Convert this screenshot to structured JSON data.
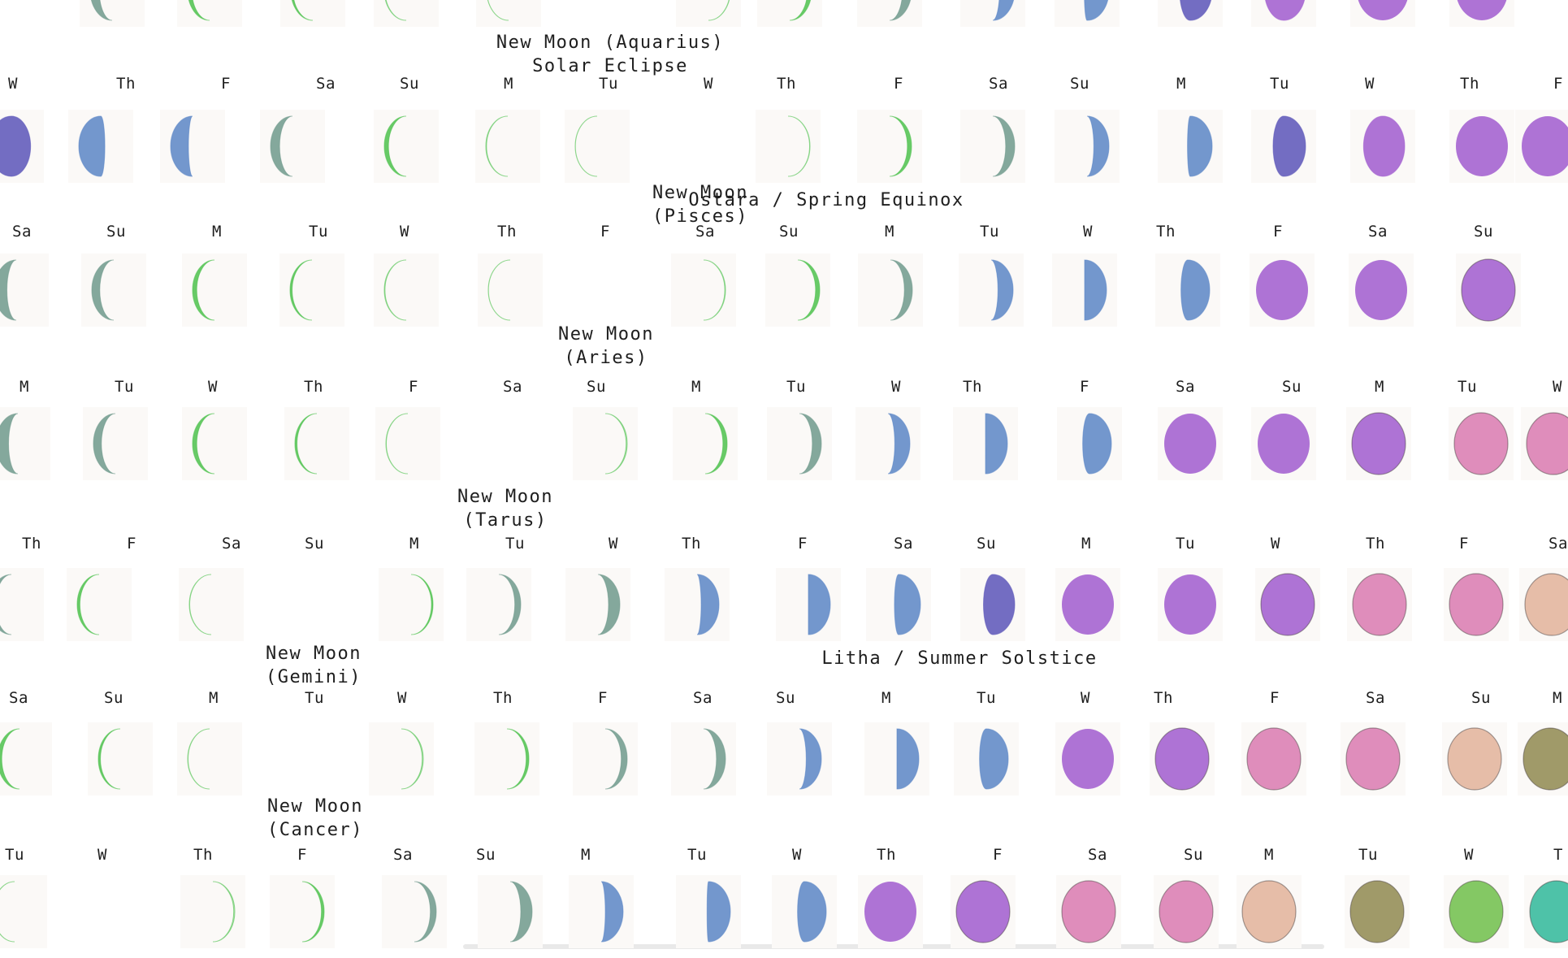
{
  "weeks": [
    {
      "days": [
        "W",
        "Th",
        "F",
        "Sa",
        "Su",
        "M",
        "Tu",
        "W",
        "Th",
        "F",
        "Sa",
        "Su",
        "M",
        "Tu",
        "W",
        "Th",
        "F"
      ],
      "phases": [
        0.58,
        0.72,
        0.78,
        0.85,
        0.9,
        0.96,
        0.98,
        null,
        0.03,
        0.1,
        0.15,
        0.2,
        0.27,
        0.33,
        0.42,
        0.48,
        0.55
      ],
      "annotations": [
        {
          "id": "new-moon-aquarius",
          "lines": [
            "New Moon (Aquarius)",
            "Solar Eclipse"
          ]
        },
        {
          "id": "new-moon-pisces",
          "lines": [
            "New Moon",
            "(Pisces)"
          ]
        },
        {
          "id": "ostara",
          "lines": [
            "Ostara / Spring Equinox"
          ]
        }
      ]
    },
    {
      "days": [
        "Sa",
        "Su",
        "M",
        "Tu",
        "W",
        "Th",
        "F",
        "Sa",
        "Su",
        "M",
        "Tu",
        "W",
        "Th",
        "F",
        "Sa",
        "Su"
      ],
      "phases": [
        0.82,
        0.86,
        0.9,
        0.93,
        0.96,
        0.98,
        null,
        0.04,
        0.1,
        0.14,
        0.2,
        0.25,
        0.3,
        0.45,
        0.45,
        0.5
      ],
      "annotations": [
        {
          "id": "new-moon-aries",
          "lines": [
            "New Moon",
            "(Aries)"
          ]
        }
      ]
    },
    {
      "days": [
        "M",
        "Tu",
        "W",
        "Th",
        "F",
        "Sa",
        "Su",
        "M",
        "Tu",
        "W",
        "Th",
        "F",
        "Sa",
        "Su",
        "M",
        "Tu",
        "W"
      ],
      "phases": [
        0.82,
        0.86,
        0.9,
        0.93,
        0.97,
        null,
        0.05,
        0.1,
        0.15,
        0.2,
        0.25,
        0.3,
        0.45,
        0.45,
        0.5,
        0.5,
        0.5
      ],
      "annotations": [
        {
          "id": "new-moon-tarus",
          "lines": [
            "New Moon",
            "(Tarus)"
          ]
        }
      ]
    },
    {
      "days": [
        "Th",
        "F",
        "Sa",
        "Su",
        "M",
        "Tu",
        "W",
        "Th",
        "F",
        "Sa",
        "Su",
        "M",
        "Tu",
        "W",
        "Th",
        "F",
        "Sa"
      ],
      "phases": [
        0.88,
        0.92,
        0.97,
        null,
        0.06,
        0.12,
        0.17,
        0.22,
        0.25,
        0.28,
        0.32,
        0.45,
        0.45,
        0.5,
        0.5,
        0.5,
        0.5
      ],
      "annotations": [
        {
          "id": "new-moon-gemini",
          "lines": [
            "New Moon",
            "(Gemini)"
          ]
        },
        {
          "id": "litha",
          "lines": [
            "Litha / Summer Solstice"
          ]
        }
      ]
    },
    {
      "days": [
        "Sa",
        "Su",
        "M",
        "Tu",
        "W",
        "Th",
        "F",
        "Sa",
        "Su",
        "M",
        "Tu",
        "W",
        "Th",
        "F",
        "Sa",
        "Su",
        "M"
      ],
      "phases": [
        0.9,
        0.93,
        0.97,
        null,
        0.05,
        0.08,
        0.12,
        0.15,
        0.2,
        0.25,
        0.3,
        0.45,
        0.5,
        0.5,
        0.5,
        0.5,
        0.5
      ],
      "annotations": [
        {
          "id": "new-moon-cancer",
          "lines": [
            "New Moon",
            "(Cancer)"
          ]
        }
      ]
    },
    {
      "days": [
        "Tu",
        "W",
        "Th",
        "F",
        "Sa",
        "Su",
        "M",
        "Tu",
        "W",
        "Th",
        "F",
        "Sa",
        "Su",
        "M",
        "Tu",
        "W",
        "T"
      ],
      "phases": [
        0.97,
        null,
        0.05,
        0.08,
        0.12,
        0.17,
        0.22,
        0.26,
        0.3,
        0.45,
        0.5,
        0.5,
        0.5,
        0.5,
        0.5,
        0.5,
        0.5
      ],
      "annotations": []
    }
  ],
  "top_partial_phases": [
    0.85,
    0.9,
    0.93,
    0.96,
    0.98,
    0.03,
    0.1,
    0.15,
    0.2,
    0.27,
    0.33,
    0.42,
    0.48,
    0.5
  ],
  "colors": {
    "green": "#4dc24d",
    "teal": "#6f9a8c",
    "blue": "#5a86c6",
    "indigo": "#5a55b8",
    "purple": "#a05ccf",
    "pink": "#d97ab0",
    "peach": "#e2b39a",
    "olive": "#8f8a50",
    "leaf": "#6fbf4a",
    "aqua": "#2fb89a"
  }
}
